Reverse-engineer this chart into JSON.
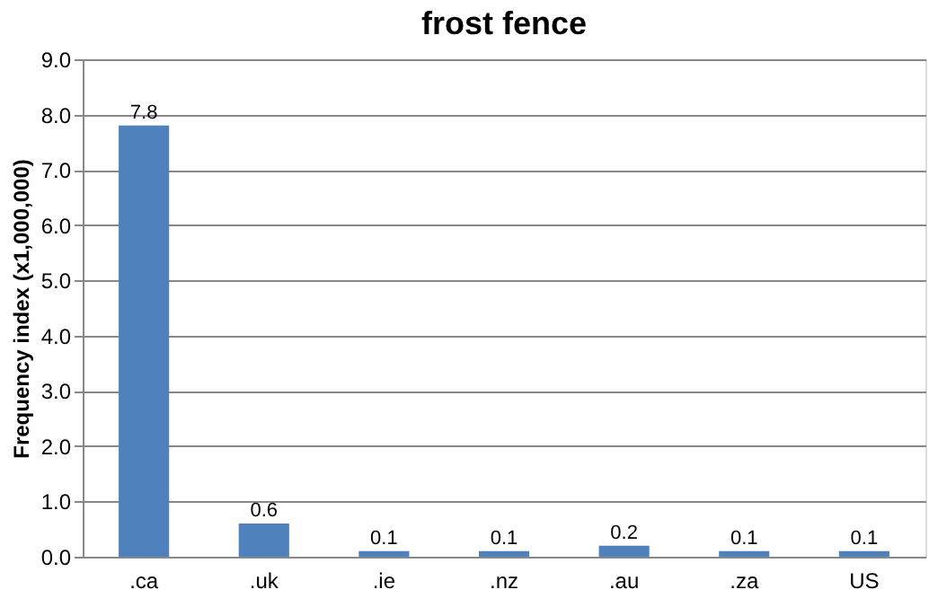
{
  "chart_data": {
    "type": "bar",
    "title": "frost fence",
    "ylabel": "Frequency index (x1,000,000)",
    "categories": [
      ".ca",
      ".uk",
      ".ie",
      ".nz",
      ".au",
      ".za",
      "US"
    ],
    "values": [
      7.8,
      0.6,
      0.1,
      0.1,
      0.2,
      0.1,
      0.1
    ],
    "color": "#4f81bd",
    "ylim": [
      0,
      9
    ],
    "yticks": [
      {
        "value": 0,
        "label": "0.0"
      },
      {
        "value": 1,
        "label": "1.0"
      },
      {
        "value": 2,
        "label": "2.0"
      },
      {
        "value": 3,
        "label": "3.0"
      },
      {
        "value": 4,
        "label": "4.0"
      },
      {
        "value": 5,
        "label": "5.0"
      },
      {
        "value": 6,
        "label": "6.0"
      },
      {
        "value": 7,
        "label": "7.0"
      },
      {
        "value": 8,
        "label": "8.0"
      },
      {
        "value": 9,
        "label": "9.0"
      }
    ],
    "grid": "y",
    "data_labels": true
  }
}
